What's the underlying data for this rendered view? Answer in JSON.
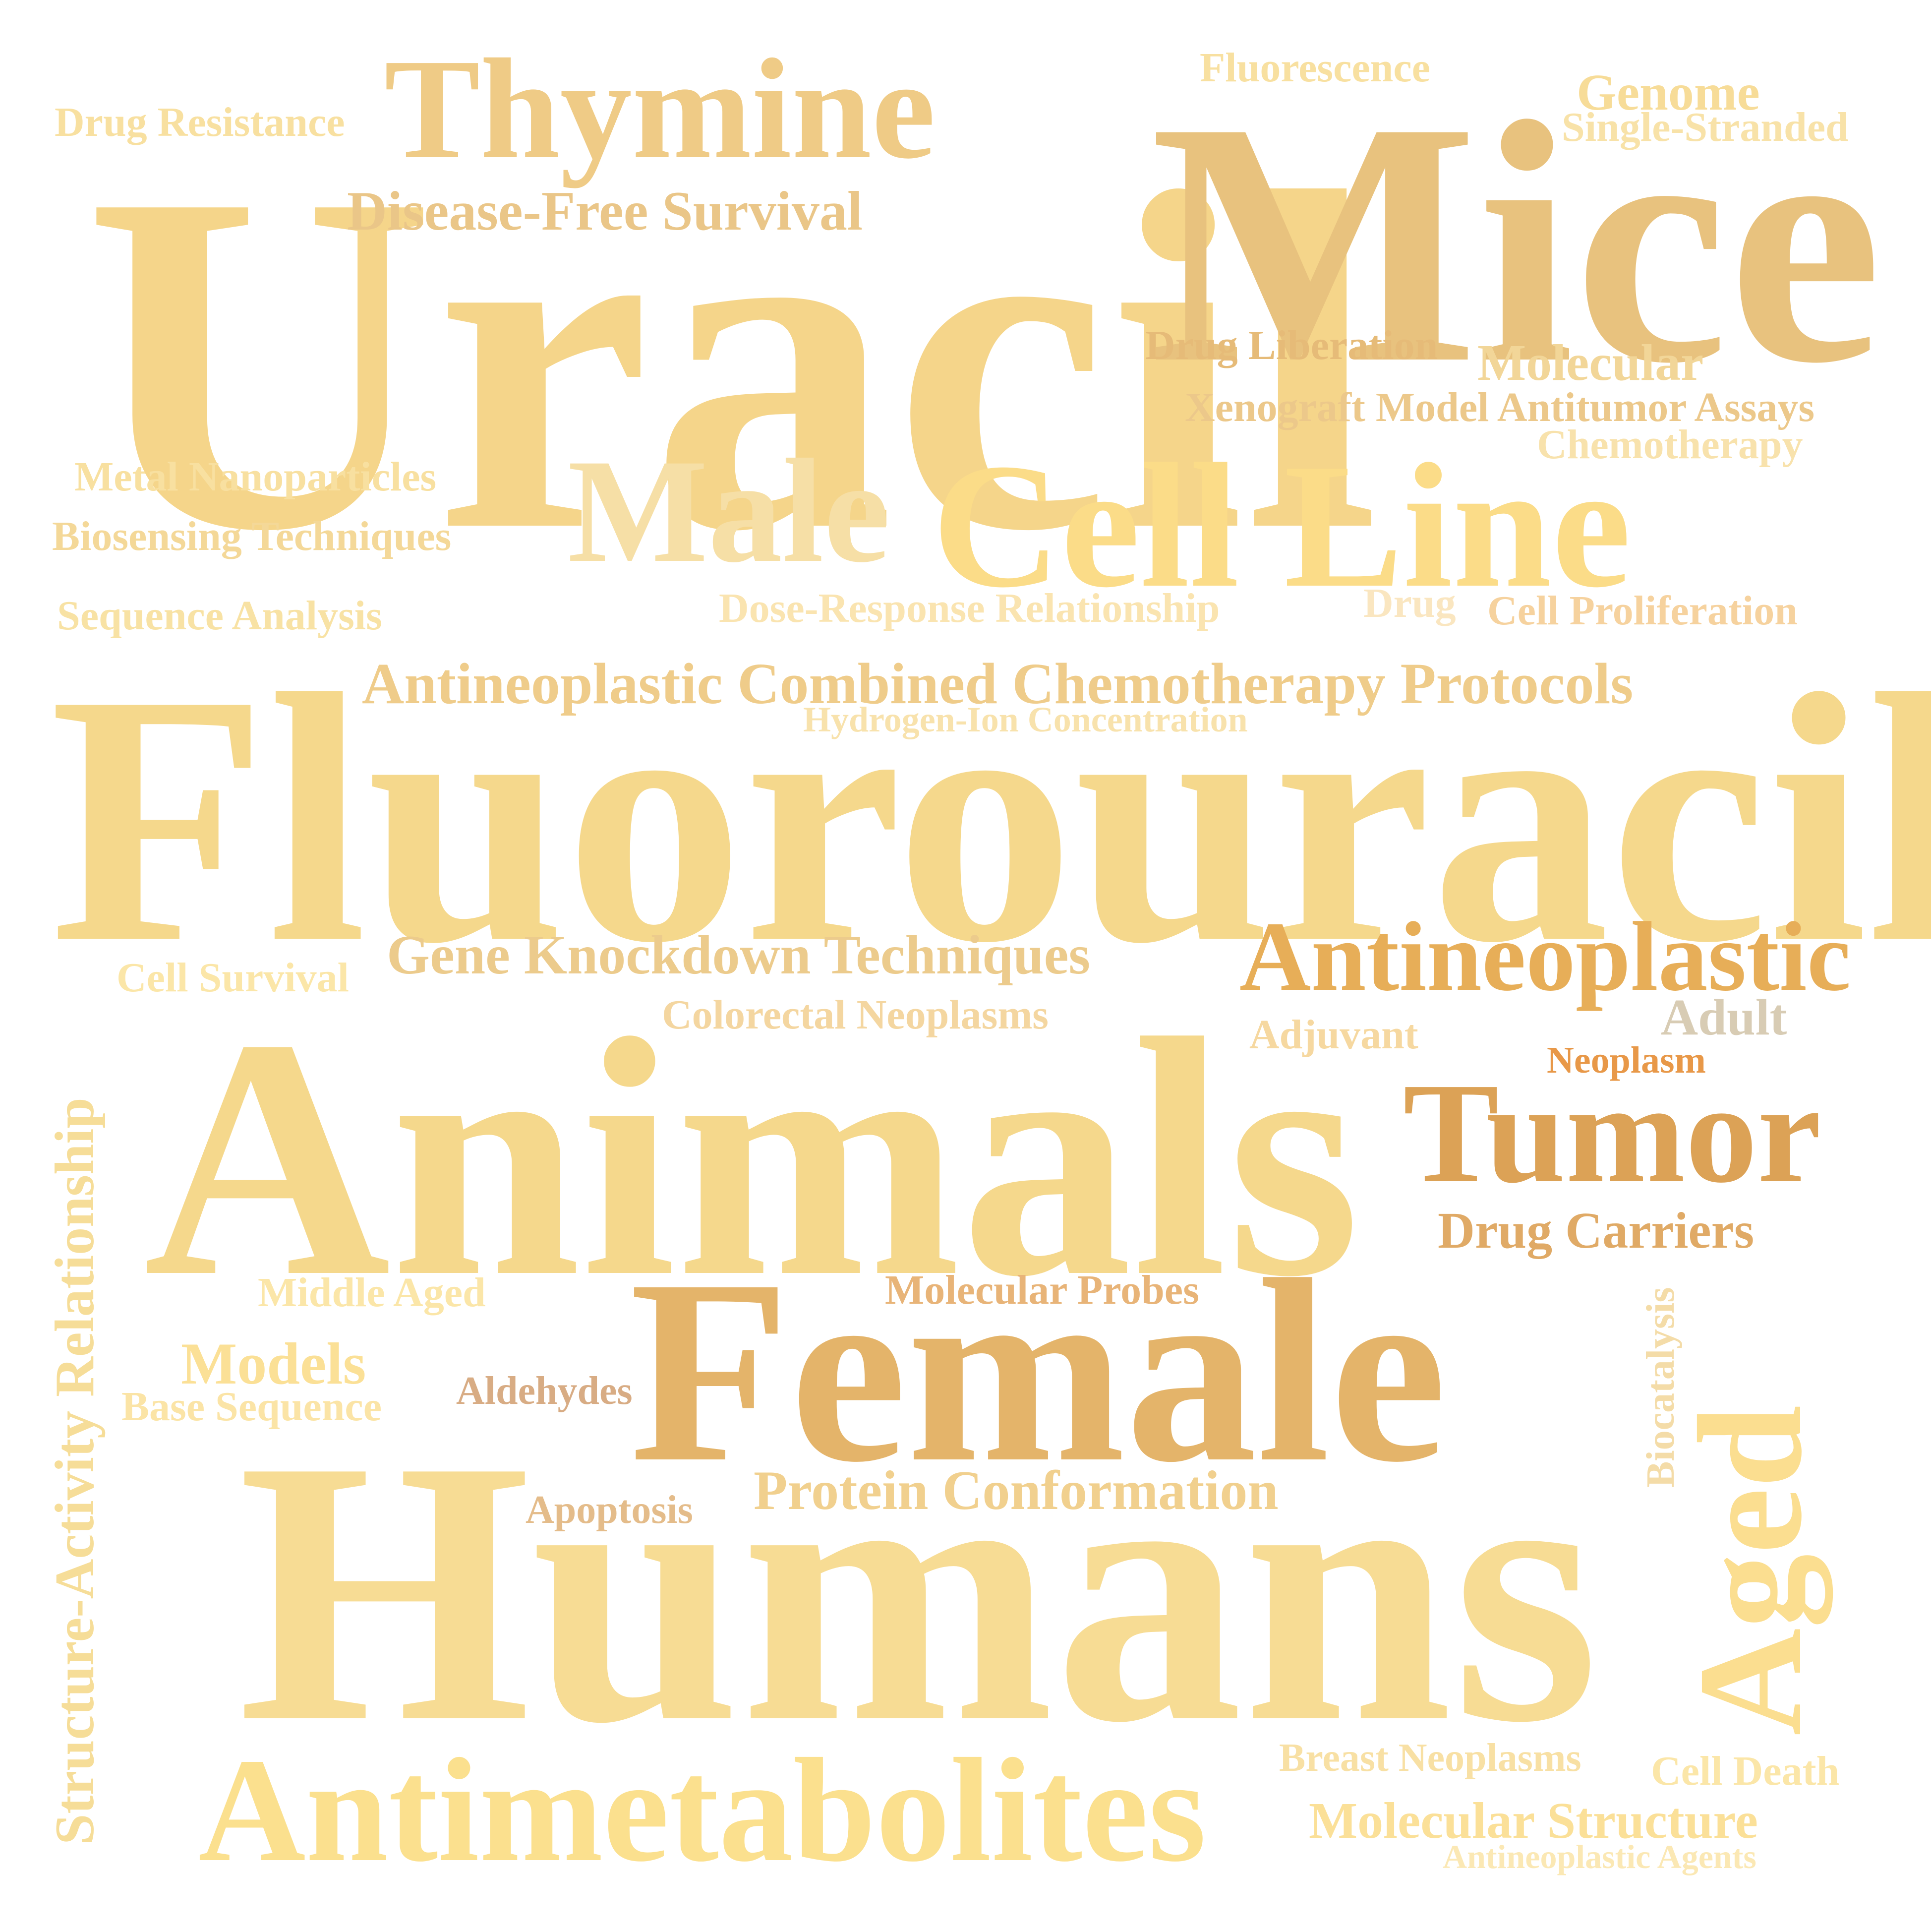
{
  "words": [
    {
      "id": "uracil",
      "text": "Uracil",
      "color": "#f5d58a"
    },
    {
      "id": "mice",
      "text": "Mice",
      "color": "#e8c27e"
    },
    {
      "id": "fluorouracil",
      "text": "Fluorouracil",
      "color": "#f5d88c"
    },
    {
      "id": "animals",
      "text": "Animals",
      "color": "#f5d88c"
    },
    {
      "id": "humans",
      "text": "Humans",
      "color": "#f7dc94"
    },
    {
      "id": "female",
      "text": "Female",
      "color": "#e4b46a"
    },
    {
      "id": "thymine",
      "text": "Thymine",
      "color": "#efcb86"
    },
    {
      "id": "cell-line",
      "text": "Cell Line",
      "color": "#fbdc88"
    },
    {
      "id": "male",
      "text": "Male",
      "color": "#f6dfa6"
    },
    {
      "id": "antimetabolites",
      "text": "Antimetabolites",
      "color": "#fbe08e"
    },
    {
      "id": "tumor",
      "text": "Tumor",
      "color": "#dca256"
    },
    {
      "id": "antineoplastic",
      "text": "Antineoplastic",
      "color": "#e7ae58"
    },
    {
      "id": "aged",
      "text": "Aged",
      "color": "#fbde90"
    },
    {
      "id": "structure-activity",
      "text": "Structure-Activity Relationship",
      "color": "#f6dd98"
    },
    {
      "id": "antineoplastic-combined",
      "text": "Antineoplastic Combined Chemotherapy Protocols",
      "color": "#efcc8a"
    },
    {
      "id": "disease-free-survival",
      "text": "Disease-Free Survival",
      "color": "#eac688"
    },
    {
      "id": "gene-knockdown",
      "text": "Gene Knockdown Techniques",
      "color": "#eccb8c"
    },
    {
      "id": "protein-conformation",
      "text": "Protein Conformation",
      "color": "#f1d08e"
    },
    {
      "id": "molecular-structure",
      "text": "Molecular Structure",
      "color": "#fbe098"
    },
    {
      "id": "drug-carriers",
      "text": "Drug Carriers",
      "color": "#e0aa66"
    },
    {
      "id": "molecular",
      "text": "Molecular",
      "color": "#f2d698"
    },
    {
      "id": "genome",
      "text": "Genome",
      "color": "#f7dc98"
    },
    {
      "id": "models",
      "text": "Models",
      "color": "#fbe096"
    },
    {
      "id": "xenograft",
      "text": "Xenograft Model Antitumor Assays",
      "color": "#ecc88a"
    },
    {
      "id": "drug-liberation",
      "text": "Drug Liberation",
      "color": "#e6bb78"
    },
    {
      "id": "fluorescence",
      "text": "Fluorescence",
      "color": "#f8e0a0"
    },
    {
      "id": "single-stranded",
      "text": "Single-Stranded",
      "color": "#f8e2a8"
    },
    {
      "id": "drug-resistance",
      "text": "Drug Resistance",
      "color": "#f8e0a0"
    },
    {
      "id": "chemotherapy",
      "text": "Chemotherapy",
      "color": "#f8e2ac"
    },
    {
      "id": "metal-nanoparticles",
      "text": "Metal Nanoparticles",
      "color": "#f8e0a0"
    },
    {
      "id": "biosensing",
      "text": "Biosensing Techniques",
      "color": "#f4d898"
    },
    {
      "id": "sequence-analysis",
      "text": "Sequence Analysis",
      "color": "#f8e2a4"
    },
    {
      "id": "dose-response",
      "text": "Dose-Response Relationship",
      "color": "#fae4b0"
    },
    {
      "id": "drug",
      "text": "Drug",
      "color": "#fae6c0"
    },
    {
      "id": "cell-proliferation",
      "text": "Cell Proliferation",
      "color": "#f6d29e"
    },
    {
      "id": "hydrogen-ion",
      "text": "Hydrogen-Ion Concentration",
      "color": "#f8e2ac"
    },
    {
      "id": "cell-survival",
      "text": "Cell Survival",
      "color": "#fbe6a8"
    },
    {
      "id": "colorectal",
      "text": "Colorectal Neoplasms",
      "color": "#f4d6a0"
    },
    {
      "id": "adjuvant",
      "text": "Adjuvant",
      "color": "#f6d8a0"
    },
    {
      "id": "adult",
      "text": "Adult",
      "color": "#d8ccb4"
    },
    {
      "id": "neoplasm",
      "text": "Neoplasm",
      "color": "#e89848"
    },
    {
      "id": "middle-aged",
      "text": "Middle Aged",
      "color": "#fbe6a8"
    },
    {
      "id": "molecular-probes",
      "text": "Molecular Probes",
      "color": "#e8b478"
    },
    {
      "id": "base-sequence",
      "text": "Base Sequence",
      "color": "#fbe4a6"
    },
    {
      "id": "aldehydes",
      "text": "Aldehydes",
      "color": "#d8ac84"
    },
    {
      "id": "apoptosis",
      "text": "Apoptosis",
      "color": "#e4bc8a"
    },
    {
      "id": "biocatalysis",
      "text": "Biocatalysis",
      "color": "#f4dca8"
    },
    {
      "id": "breast-neoplasms",
      "text": "Breast Neoplasms",
      "color": "#f8e0a4"
    },
    {
      "id": "cell-death",
      "text": "Cell Death",
      "color": "#fbe6a8"
    },
    {
      "id": "antineoplastic-agents",
      "text": "Antineoplastic Agents",
      "color": "#fbe8b4"
    }
  ]
}
